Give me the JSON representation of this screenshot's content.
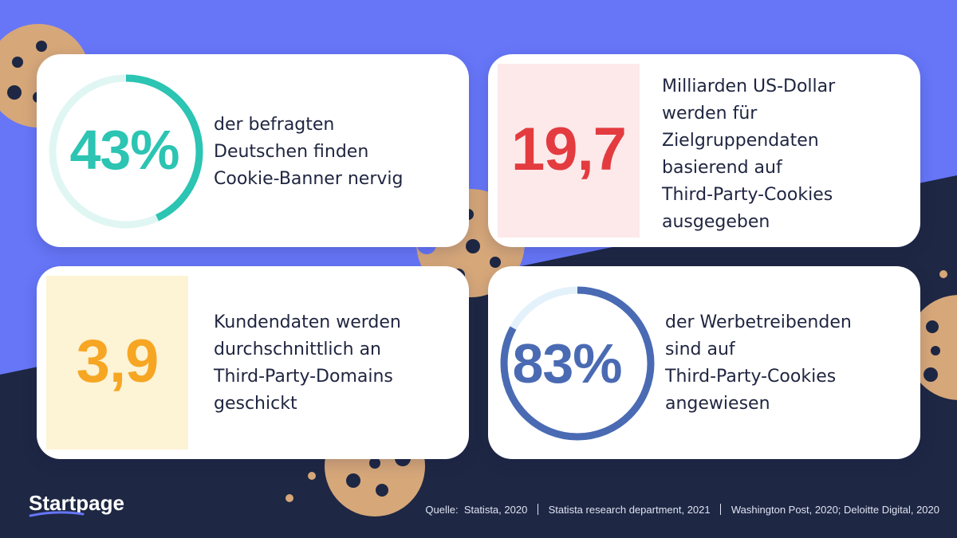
{
  "colors": {
    "background_top": "#6676f7",
    "background_bottom": "#1e2743",
    "teal": "#2cc4b3",
    "red": "#e33b3f",
    "orange": "#f6a623",
    "blue": "#4a6bb3",
    "cookie": "#d6a779",
    "chip": "#1e2743"
  },
  "stats": [
    {
      "value": "43%",
      "text": [
        "der befragten",
        "Deutschen finden",
        "Cookie-Banner nervig"
      ],
      "percent": 43,
      "color": "#2cc4b3"
    },
    {
      "value": "19,7",
      "text": [
        "Milliarden US-Dollar",
        "werden für",
        "Zielgruppendaten",
        "basierend auf",
        "Third-Party-Cookies",
        "ausgegeben"
      ],
      "color": "#e33b3f"
    },
    {
      "value": "3,9",
      "text": [
        "Kundendaten werden",
        "durchschnittlich an",
        "Third-Party-Domains",
        "geschickt"
      ],
      "color": "#f6a623"
    },
    {
      "value": "83%",
      "text": [
        "der Werbetreibenden",
        "sind auf",
        "Third-Party-Cookies",
        "angewiesen"
      ],
      "percent": 83,
      "color": "#4a6bb3"
    }
  ],
  "brand": "Startpage",
  "sources": {
    "prefix": "Quelle:",
    "items": [
      "Statista, 2020",
      "Statista research department, 2021",
      "Washington Post, 2020; Deloitte Digital, 2020"
    ]
  }
}
